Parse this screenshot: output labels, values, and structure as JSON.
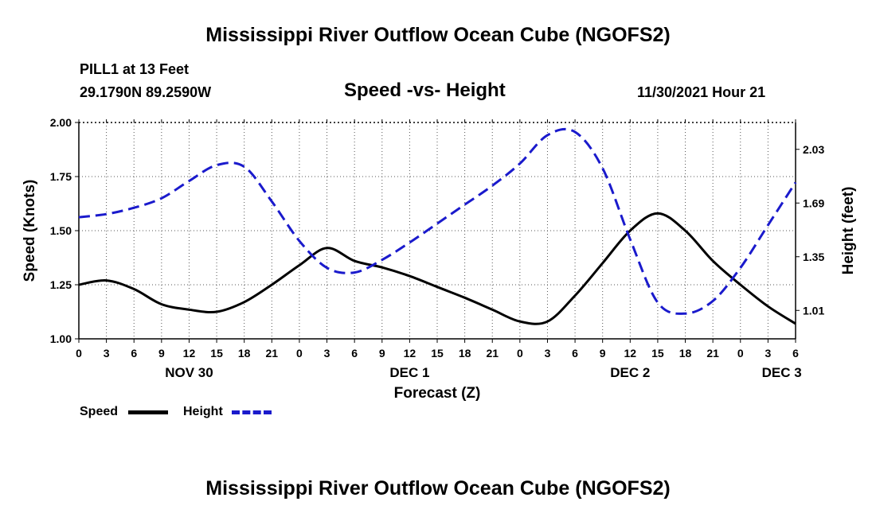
{
  "page": {
    "title": "Mississippi River Outflow Ocean Cube (NGOFS2)",
    "footer_title": "Mississippi River Outflow Ocean Cube (NGOFS2)",
    "station": "PILL1 at 13 Feet",
    "coords": "29.1790N  89.2590W",
    "subtitle": "Speed -vs- Height",
    "timestamp": "11/30/2021 Hour 21"
  },
  "legend": {
    "speed_label": "Speed",
    "height_label": "Height"
  },
  "colors": {
    "speed": "#000000",
    "height": "#1a1acc",
    "grid": "#555555"
  },
  "chart_data": {
    "type": "line",
    "title": "Speed -vs- Height",
    "xlabel": "Forecast (Z)",
    "ylabel": "Speed (Knots)",
    "y2label": "Height (feet)",
    "x_unit": "hours since Nov 30 00Z",
    "xlim": [
      0,
      78
    ],
    "ylim": [
      1.0,
      2.0
    ],
    "y2lim": [
      0.83,
      2.2
    ],
    "x_ticks": [
      0,
      3,
      6,
      9,
      12,
      15,
      18,
      21,
      24,
      27,
      30,
      33,
      36,
      39,
      42,
      45,
      48,
      51,
      54,
      57,
      60,
      63,
      66,
      69,
      72,
      75,
      78
    ],
    "x_tick_labels": [
      "0",
      "3",
      "6",
      "9",
      "12",
      "15",
      "18",
      "21",
      "0",
      "3",
      "6",
      "9",
      "12",
      "15",
      "18",
      "21",
      "0",
      "3",
      "6",
      "9",
      "12",
      "15",
      "18",
      "21",
      "0",
      "3",
      "6"
    ],
    "y_ticks": [
      1.0,
      1.25,
      1.5,
      1.75,
      2.0
    ],
    "y_tick_labels": [
      "1.00",
      "1.25",
      "1.50",
      "1.75",
      "2.00"
    ],
    "y2_ticks": [
      1.01,
      1.35,
      1.69,
      2.03
    ],
    "y2_tick_labels": [
      "1.01",
      "1.35",
      "1.69",
      "2.03"
    ],
    "day_labels": [
      {
        "x": 12,
        "label": "NOV 30"
      },
      {
        "x": 36,
        "label": "DEC 1"
      },
      {
        "x": 60,
        "label": "DEC 2"
      },
      {
        "x": 76.5,
        "label": "DEC 3"
      }
    ],
    "grid": true,
    "series": [
      {
        "name": "Speed",
        "axis": "left",
        "style": "solid",
        "x": [
          0,
          3,
          6,
          9,
          12,
          15,
          18,
          21,
          24,
          27,
          30,
          33,
          36,
          39,
          42,
          45,
          48,
          51,
          54,
          57,
          60,
          63,
          66,
          69,
          72,
          75,
          78
        ],
        "values": [
          1.25,
          1.27,
          1.23,
          1.16,
          1.135,
          1.125,
          1.17,
          1.25,
          1.34,
          1.42,
          1.36,
          1.33,
          1.29,
          1.24,
          1.19,
          1.135,
          1.08,
          1.08,
          1.2,
          1.35,
          1.5,
          1.58,
          1.5,
          1.36,
          1.25,
          1.15,
          1.07
        ]
      },
      {
        "name": "Height",
        "axis": "right",
        "style": "dashed",
        "x": [
          0,
          3,
          6,
          9,
          12,
          15,
          18,
          21,
          24,
          27,
          30,
          33,
          36,
          39,
          42,
          45,
          48,
          51,
          54,
          57,
          60,
          63,
          66,
          69,
          72,
          75,
          78
        ],
        "values": [
          1.6,
          1.62,
          1.66,
          1.72,
          1.83,
          1.93,
          1.92,
          1.7,
          1.45,
          1.28,
          1.25,
          1.33,
          1.44,
          1.56,
          1.68,
          1.8,
          1.94,
          2.12,
          2.14,
          1.91,
          1.46,
          1.06,
          0.99,
          1.07,
          1.28,
          1.55,
          1.82
        ]
      }
    ]
  }
}
